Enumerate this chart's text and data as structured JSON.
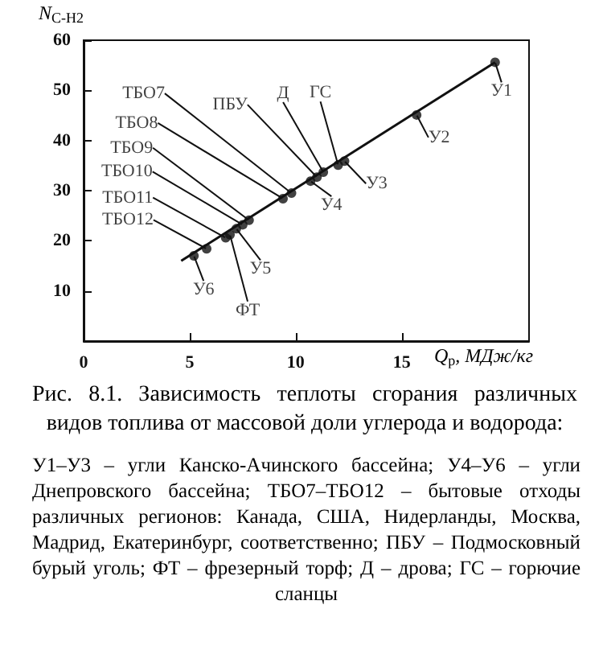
{
  "chart_data": {
    "type": "scatter",
    "title": "Рис. 8.1. Зависимость теплоты сгорания различных видов топлива от массовой доли углерода и водорода:",
    "xlabel": "Q$_{р}$, МДж/кг",
    "ylabel": "N$_{C-H2}$",
    "xlim": [
      0,
      21
    ],
    "xticks": [
      0,
      5,
      10,
      15
    ],
    "ylim": [
      0,
      60
    ],
    "yticks": [
      10,
      20,
      30,
      40,
      50,
      60
    ],
    "grid": false,
    "marker": "circle",
    "series": [
      {
        "color": "#111111",
        "x": [
          19.4,
          15.7,
          12.3,
          12.0,
          11.3,
          11.0,
          10.7,
          9.8,
          9.4,
          7.8,
          7.5,
          7.2,
          6.9,
          6.7,
          5.8,
          5.2
        ],
        "values": [
          55.6,
          45.1,
          35.9,
          35.1,
          33.7,
          32.7,
          31.9,
          29.5,
          28.4,
          24.1,
          23.2,
          22.4,
          21.2,
          20.6,
          18.4,
          17.0
        ]
      },
      {
        "type": "line",
        "color": "#111111",
        "marker": "none",
        "x": [
          4.6,
          19.4
        ],
        "values": [
          16.0,
          55.6
        ]
      }
    ],
    "annotations": [
      {
        "text": "У1",
        "x": 19.4,
        "y": 55.6
      },
      {
        "text": "У2",
        "x": 15.7,
        "y": 45.1
      },
      {
        "text": "У3",
        "x": 12.3,
        "y": 35.9
      },
      {
        "text": "ГС",
        "x": 12.0,
        "y": 35.1
      },
      {
        "text": "Д",
        "x": 11.3,
        "y": 33.7
      },
      {
        "text": "ПБУ",
        "x": 11.0,
        "y": 32.7
      },
      {
        "text": "У4",
        "x": 10.7,
        "y": 31.9
      },
      {
        "text": "ТБО7",
        "x": 9.8,
        "y": 29.5
      },
      {
        "text": "ТБО8",
        "x": 9.4,
        "y": 28.4
      },
      {
        "text": "ТБО9",
        "x": 7.8,
        "y": 24.1
      },
      {
        "text": "ТБО10",
        "x": 7.5,
        "y": 23.2
      },
      {
        "text": "У5",
        "x": 7.2,
        "y": 22.4
      },
      {
        "text": "ФТ",
        "x": 6.9,
        "y": 21.2
      },
      {
        "text": "ТБО11",
        "x": 6.7,
        "y": 20.6
      },
      {
        "text": "ТБО12",
        "x": 5.8,
        "y": 18.4
      },
      {
        "text": "У6",
        "x": 5.2,
        "y": 17.0
      },
      "У1–У3 – угли Канско-Ачинского бассейна; У4–У6 – угли Днепровского бассейна; ТБО7–ТБО12 – бытовые отходы различных регионов: Канада, США, Нидерланды, Москва, Мадрид, Екатеринбург, соответственно; ПБУ – Подмосковный бурый уголь; ФТ – фрезерный торф; Д – дрова; ГС – горючие сланцы"
    ]
  }
}
